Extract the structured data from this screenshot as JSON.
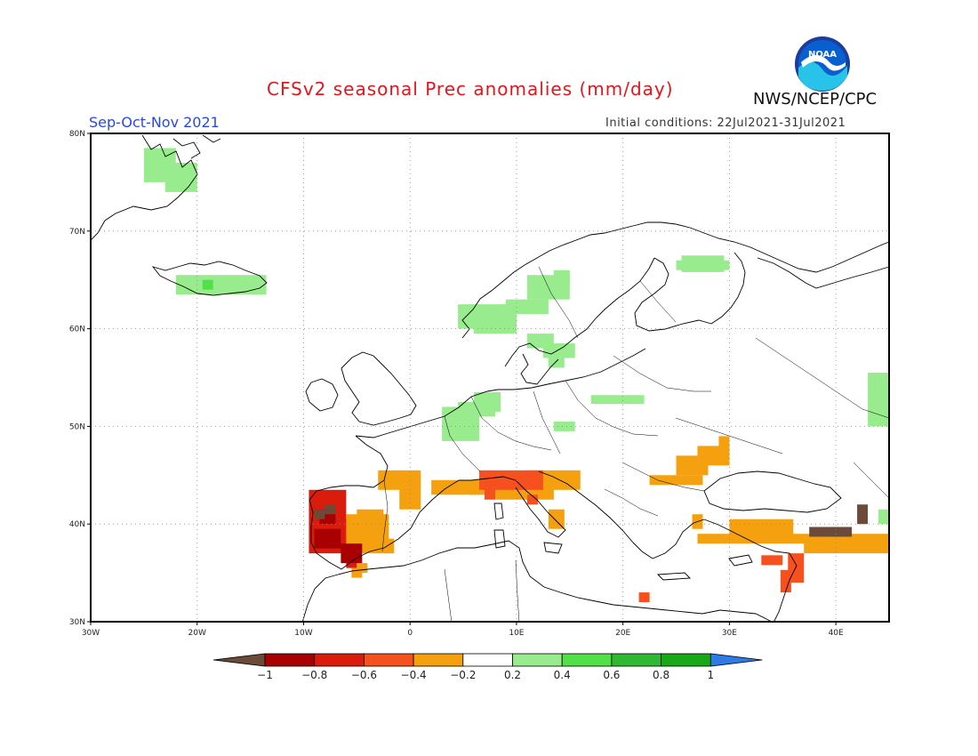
{
  "header": {
    "title": "CFSv2 seasonal Prec anomalies (mm/day)",
    "agency": "NWS/NCEP/CPC",
    "logo_text": "NOAA",
    "season": "Sep-Oct-Nov 2021",
    "initial_conditions": "Initial conditions: 22Jul2021-31Jul2021"
  },
  "map": {
    "lon_range": [
      -30,
      45
    ],
    "lat_range": [
      30,
      80
    ],
    "lon_labels": [
      "30W",
      "20W",
      "10W",
      "0",
      "10E",
      "20E",
      "30E",
      "40E"
    ],
    "lat_labels": [
      "30N",
      "40N",
      "50N",
      "60N",
      "70N",
      "80N"
    ],
    "grid": "dotted"
  },
  "colorbar": {
    "tick_labels": [
      "-1",
      "-0.8",
      "-0.6",
      "-0.4",
      "-0.2",
      "0.2",
      "0.4",
      "0.6",
      "0.8",
      "1"
    ],
    "colors": {
      "below_min": "#6b4a3a",
      "-1_-0.8": "#a80000",
      "-0.8_-0.6": "#d91c0c",
      "-0.6_-0.4": "#f5501e",
      "-0.4_-0.2": "#f5a00f",
      "-0.2_0.2": "#ffffff",
      "0.2_0.4": "#98ec8e",
      "0.4_0.6": "#52e049",
      "0.6_0.8": "#31b832",
      "0.8_1": "#18a818",
      "above_max": "#2e7ae6"
    }
  },
  "anomaly_regions": [
    {
      "area": "Greenland east coast",
      "level": "0.2_0.4"
    },
    {
      "area": "Iceland",
      "level": "0.2_0.4"
    },
    {
      "area": "Iceland center",
      "level": "0.4_0.6"
    },
    {
      "area": "Norway west coast",
      "level": "0.2_0.4"
    },
    {
      "area": "southern Sweden",
      "level": "0.2_0.4"
    },
    {
      "area": "Benelux",
      "level": "0.2_0.4"
    },
    {
      "area": "Poland",
      "level": "0.2_0.4"
    },
    {
      "area": "Kola / northwest Russia",
      "level": "0.2_0.4"
    },
    {
      "area": "Russia east edge",
      "level": "0.2_0.4"
    },
    {
      "area": "Portugal / west Spain",
      "level": "-1_-0.6"
    },
    {
      "area": "Spain",
      "level": "-0.4_-0.2"
    },
    {
      "area": "southern France",
      "level": "-0.4_-0.2"
    },
    {
      "area": "northern Italy",
      "level": "-0.6_-0.4"
    },
    {
      "area": "Turkey",
      "level": "-0.6_-0.2"
    },
    {
      "area": "eastern Turkey",
      "level": "below_min"
    },
    {
      "area": "Ukraine",
      "level": "-0.4_-0.2"
    },
    {
      "area": "Levant",
      "level": "-0.6_-0.4"
    }
  ]
}
